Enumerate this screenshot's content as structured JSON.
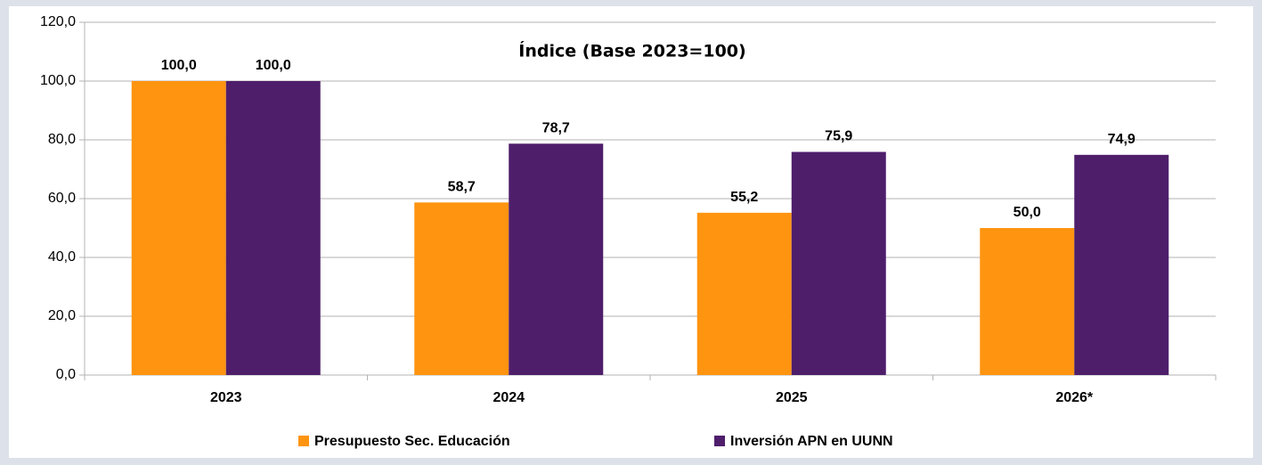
{
  "chart_data": {
    "type": "bar",
    "title": "Índice (Base 2023=100)",
    "categories": [
      "2023",
      "2024",
      "2025",
      "2026*"
    ],
    "series": [
      {
        "name": "Presupuesto Sec. Educación",
        "color": "#ff9410",
        "values": [
          100,
          58.7,
          55.2,
          50
        ],
        "value_labels": [
          "100,0",
          "58,7",
          "55,2",
          "50,0"
        ]
      },
      {
        "name": "Inversión APN en UUNN",
        "color": "#4e1e6b",
        "values": [
          100,
          78.7,
          75.9,
          74.9
        ],
        "value_labels": [
          "100,0",
          "78,7",
          "75,9",
          "74,9"
        ]
      }
    ],
    "ylim": [
      0,
      120
    ],
    "yticks": [
      {
        "value": 0,
        "label": "0,0"
      },
      {
        "value": 20,
        "label": "20,0"
      },
      {
        "value": 40,
        "label": "40,0"
      },
      {
        "value": 60,
        "label": "60,0"
      },
      {
        "value": 80,
        "label": "80,0"
      },
      {
        "value": 100,
        "label": "100,0"
      },
      {
        "value": 120,
        "label": "120,0"
      }
    ],
    "grid": true,
    "legend": "bottom"
  }
}
